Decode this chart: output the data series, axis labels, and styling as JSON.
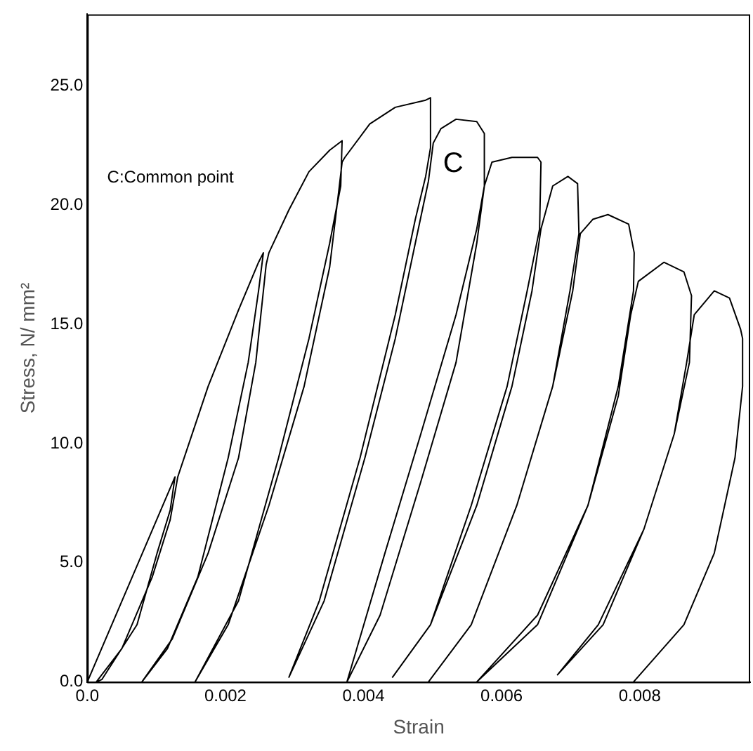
{
  "chart_data": {
    "type": "line",
    "xlabel": "Strain",
    "ylabel": "Stress, N/ mm²",
    "xlim": [
      0,
      0.0096
    ],
    "ylim": [
      0,
      28
    ],
    "xticks": [
      {
        "value": 0,
        "label": "0.0"
      },
      0.002,
      0.004,
      0.006,
      0.008
    ],
    "yticks": [
      {
        "value": 0,
        "label": "0.0"
      },
      {
        "value": 5,
        "label": "5.0"
      },
      {
        "value": 10,
        "label": "10.0"
      },
      {
        "value": 15,
        "label": "15.0"
      },
      {
        "value": 20,
        "label": "20.0"
      },
      {
        "value": 25,
        "label": "25.0"
      }
    ],
    "grid": false,
    "legend": false,
    "annotations": [
      "C:Common point",
      "C"
    ],
    "series": [
      {
        "color": "#000000",
        "x": [
          0,
          0.00065,
          0.00127,
          0.00123,
          0.0012,
          0.00101,
          0.00072,
          0.00021,
          0.00013,
          0.0005,
          0.00094,
          0.0012,
          0.00131,
          0.00175,
          0.00219,
          0.00248,
          0.00255,
          0.00248,
          0.00233,
          0.00204,
          0.0016,
          0.00116,
          0.00079,
          0.00123,
          0.00175,
          0.00219,
          0.00244,
          0.00255,
          0.00259,
          0.00263,
          0.00292,
          0.00321,
          0.00351,
          0.00369,
          0.00367,
          0.00351,
          0.00321,
          0.00277,
          0.00219,
          0.00156,
          0.00204,
          0.00263,
          0.00314,
          0.00351,
          0.00365,
          0.00369,
          0.00373,
          0.00409,
          0.00446,
          0.0049,
          0.00497,
          0.00497,
          0.0049,
          0.00475,
          0.00446,
          0.00395,
          0.00336,
          0.00292,
          0.00343,
          0.00402,
          0.00446,
          0.00475,
          0.00494,
          0.00501,
          0.00512,
          0.00534,
          0.00564,
          0.00575,
          0.00575,
          0.00564,
          0.00534,
          0.00483,
          0.00431,
          0.00376,
          0.00424,
          0.00483,
          0.00534,
          0.00564,
          0.00575,
          0.00586,
          0.00615,
          0.00652,
          0.00657,
          0.00655,
          0.00637,
          0.00608,
          0.00556,
          0.00497,
          0.00442,
          0.00497,
          0.00564,
          0.00615,
          0.00644,
          0.00657,
          0.00674,
          0.00696,
          0.0071,
          0.00712,
          0.00699,
          0.00674,
          0.00622,
          0.00556,
          0.00494,
          0.00556,
          0.00622,
          0.00674,
          0.00703,
          0.00714,
          0.00732,
          0.00754,
          0.00784,
          0.00792,
          0.00791,
          0.00769,
          0.00725,
          0.00652,
          0.00564,
          0.00652,
          0.00725,
          0.00769,
          0.00787,
          0.00798,
          0.00835,
          0.00864,
          0.00875,
          0.00872,
          0.0085,
          0.00806,
          0.0074,
          0.00681,
          0.00747,
          0.00806,
          0.0085,
          0.00868,
          0.00879,
          0.00908,
          0.0093,
          0.00946,
          0.00949,
          0.00949,
          0.00938,
          0.00908,
          0.00864,
          0.00791
        ],
        "values": [
          0,
          4.4,
          8.6,
          7.8,
          7.2,
          5.4,
          2.4,
          0.1,
          0,
          1.4,
          4.4,
          6.8,
          8.6,
          12.4,
          15.6,
          17.6,
          18.0,
          16.4,
          13.4,
          9.4,
          4.4,
          1.4,
          0,
          1.8,
          5.4,
          9.4,
          13.4,
          16.4,
          17.5,
          18.0,
          19.8,
          21.4,
          22.3,
          22.7,
          20.8,
          18.4,
          14.4,
          9.4,
          3.4,
          0,
          2.4,
          7.4,
          12.4,
          17.4,
          20.8,
          21.8,
          22.0,
          23.4,
          24.1,
          24.4,
          24.5,
          22.4,
          21.2,
          19.4,
          15.4,
          9.4,
          3.4,
          0.2,
          3.4,
          9.4,
          14.4,
          18.4,
          21.0,
          22.6,
          23.2,
          23.6,
          23.5,
          23.0,
          20.8,
          19.0,
          15.4,
          10.4,
          5.4,
          0,
          2.8,
          8.4,
          13.4,
          18.4,
          20.8,
          21.8,
          22.0,
          22.0,
          21.8,
          19.0,
          16.4,
          12.4,
          7.4,
          2.4,
          0.2,
          2.4,
          7.4,
          12.4,
          16.4,
          19.0,
          20.8,
          21.2,
          20.9,
          18.8,
          16.4,
          12.4,
          7.4,
          2.4,
          0,
          2.4,
          7.4,
          12.4,
          16.4,
          18.8,
          19.4,
          19.6,
          19.2,
          18.0,
          16.4,
          12.4,
          7.4,
          2.4,
          0,
          2.8,
          7.4,
          12.0,
          15.4,
          16.8,
          17.6,
          17.2,
          16.2,
          13.4,
          10.4,
          6.4,
          2.4,
          0.3,
          2.4,
          6.4,
          10.4,
          13.4,
          15.4,
          16.4,
          16.1,
          14.8,
          14.4,
          12.4,
          9.4,
          5.4,
          2.4,
          0
        ]
      }
    ]
  }
}
